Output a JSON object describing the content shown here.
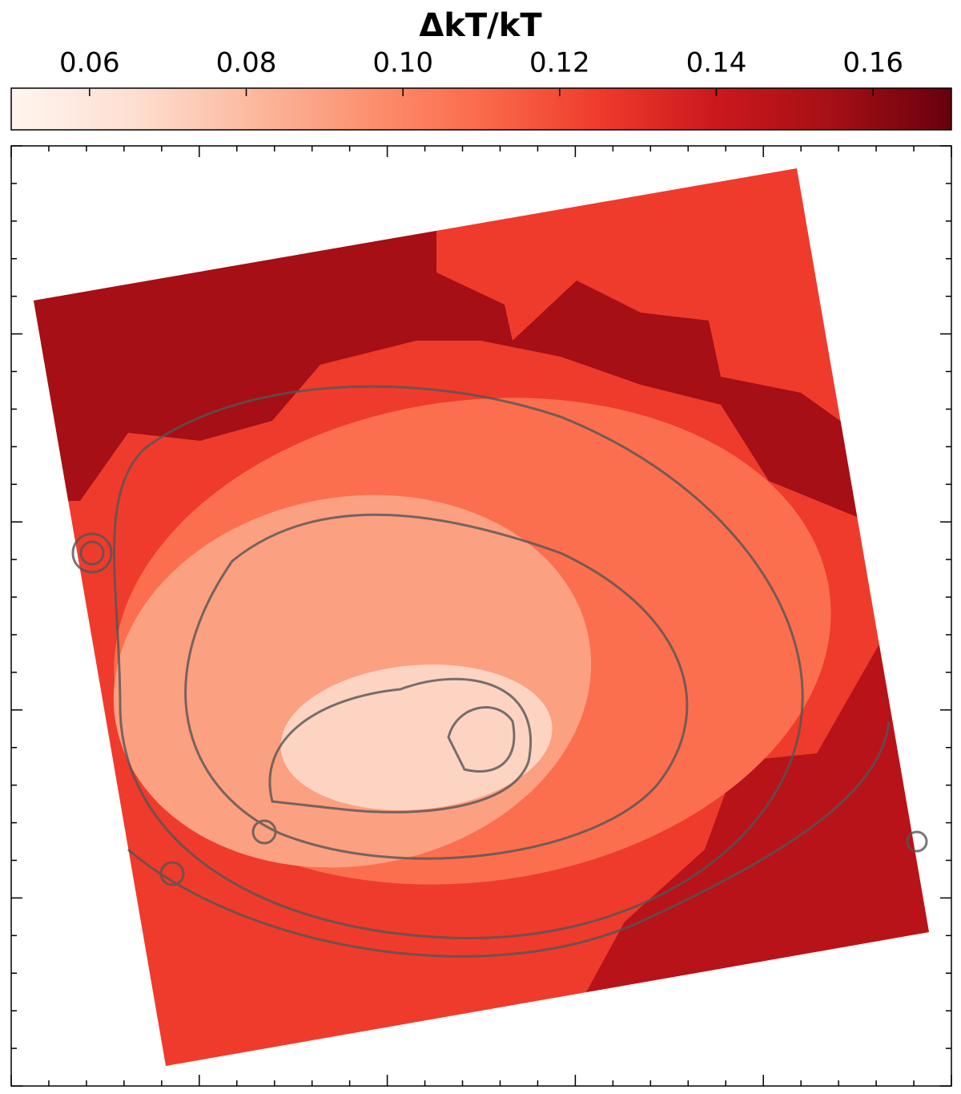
{
  "chart_data": {
    "type": "heatmap",
    "title": "ΔkT/kT",
    "clim": [
      0.05,
      0.17
    ],
    "cticks": [
      0.06,
      0.08,
      {
        "value": 0.1,
        "label": "0.10"
      },
      0.12,
      0.14,
      0.16
    ],
    "colormap": [
      "#fff5f0",
      "#fee0d2",
      "#fcbba1",
      "#fc9272",
      "#fb6a4a",
      "#ef3b2c",
      "#cb181d",
      "#a50f15",
      "#67000d"
    ],
    "region_values": [
      0.125,
      0.155,
      0.148,
      0.108,
      0.09,
      0.07
    ]
  }
}
